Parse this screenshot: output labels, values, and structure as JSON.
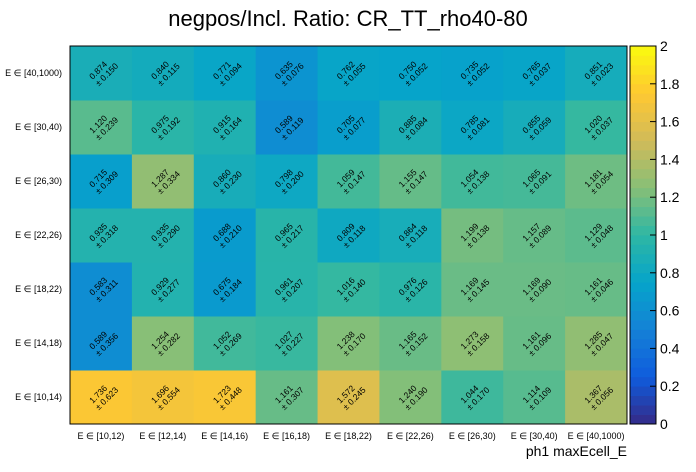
{
  "chart_data": {
    "type": "heatmap",
    "title": "negpos/Incl. Ratio: CR_TT_rho40-80",
    "xlabel": "ph1 maxEcell_E",
    "ylabel": "",
    "x_categories": [
      "E ∈ [10,12)",
      "E ∈ [12,14)",
      "E ∈ [14,16)",
      "E ∈ [16,18)",
      "E ∈ [18,22)",
      "E ∈ [22,26)",
      "E ∈ [26,30)",
      "E ∈ [30,40)",
      "E ∈ [40,1000)"
    ],
    "y_categories": [
      "E ∈ [10,14)",
      "E ∈ [14,18)",
      "E ∈ [18,22)",
      "E ∈ [22,26)",
      "E ∈ [26,30)",
      "E ∈ [30,40)",
      "E ∈ [40,1000)"
    ],
    "zlim": [
      0,
      2
    ],
    "z_ticks": [
      "0",
      "0.2",
      "0.4",
      "0.6",
      "0.8",
      "1",
      "1.2",
      "1.4",
      "1.6",
      "1.8",
      "2"
    ],
    "colormap": [
      "#352a87",
      "#0f5cdd",
      "#1481d6",
      "#06a4ca",
      "#2eb7a4",
      "#87bf77",
      "#d1bb59",
      "#fec832",
      "#f9fb0e"
    ],
    "cells": [
      {
        "value": "1.736",
        "error": "± 0.623"
      },
      {
        "value": "1.696",
        "error": "± 0.554"
      },
      {
        "value": "1.723",
        "error": "± 0.448"
      },
      {
        "value": "1.161",
        "error": "± 0.307"
      },
      {
        "value": "1.572",
        "error": "± 0.245"
      },
      {
        "value": "1.240",
        "error": "± 0.190"
      },
      {
        "value": "1.044",
        "error": "± 0.170"
      },
      {
        "value": "1.114",
        "error": "± 0.109"
      },
      {
        "value": "1.367",
        "error": "± 0.056"
      },
      {
        "value": "0.589",
        "error": "± 0.356"
      },
      {
        "value": "1.254",
        "error": "± 0.282"
      },
      {
        "value": "1.052",
        "error": "± 0.269"
      },
      {
        "value": "1.027",
        "error": "± 0.227"
      },
      {
        "value": "1.238",
        "error": "± 0.170"
      },
      {
        "value": "1.165",
        "error": "± 0.152"
      },
      {
        "value": "1.273",
        "error": "± 0.158"
      },
      {
        "value": "1.161",
        "error": "± 0.096"
      },
      {
        "value": "1.285",
        "error": "± 0.047"
      },
      {
        "value": "0.583",
        "error": "± 0.311"
      },
      {
        "value": "0.929",
        "error": "± 0.277"
      },
      {
        "value": "0.675",
        "error": "± 0.184"
      },
      {
        "value": "0.961",
        "error": "± 0.207"
      },
      {
        "value": "1.016",
        "error": "± 0.140"
      },
      {
        "value": "0.976",
        "error": "± 0.126"
      },
      {
        "value": "1.169",
        "error": "± 0.145"
      },
      {
        "value": "1.169",
        "error": "± 0.090"
      },
      {
        "value": "1.161",
        "error": "± 0.046"
      },
      {
        "value": "0.935",
        "error": "± 0.318"
      },
      {
        "value": "0.935",
        "error": "± 0.290"
      },
      {
        "value": "0.688",
        "error": "± 0.210"
      },
      {
        "value": "0.965",
        "error": "± 0.217"
      },
      {
        "value": "0.809",
        "error": "± 0.118"
      },
      {
        "value": "0.864",
        "error": "± 0.118"
      },
      {
        "value": "1.199",
        "error": "± 0.138"
      },
      {
        "value": "1.157",
        "error": "± 0.089"
      },
      {
        "value": "1.129",
        "error": "± 0.048"
      },
      {
        "value": "0.715",
        "error": "± 0.309"
      },
      {
        "value": "1.287",
        "error": "± 0.334"
      },
      {
        "value": "0.860",
        "error": "± 0.230"
      },
      {
        "value": "0.798",
        "error": "± 0.200"
      },
      {
        "value": "1.059",
        "error": "± 0.147"
      },
      {
        "value": "1.155",
        "error": "± 0.147"
      },
      {
        "value": "1.054",
        "error": "± 0.138"
      },
      {
        "value": "1.065",
        "error": "± 0.091"
      },
      {
        "value": "1.181",
        "error": "± 0.054"
      },
      {
        "value": "1.120",
        "error": "± 0.239"
      },
      {
        "value": "0.975",
        "error": "± 0.192"
      },
      {
        "value": "0.915",
        "error": "± 0.164"
      },
      {
        "value": "0.589",
        "error": "± 0.119"
      },
      {
        "value": "0.705",
        "error": "± 0.077"
      },
      {
        "value": "0.885",
        "error": "± 0.084"
      },
      {
        "value": "0.785",
        "error": "± 0.081"
      },
      {
        "value": "0.855",
        "error": "± 0.059"
      },
      {
        "value": "1.020",
        "error": "± 0.037"
      },
      {
        "value": "0.874",
        "error": "± 0.150"
      },
      {
        "value": "0.840",
        "error": "± 0.115"
      },
      {
        "value": "0.771",
        "error": "± 0.094"
      },
      {
        "value": "0.635",
        "error": "± 0.076"
      },
      {
        "value": "0.762",
        "error": "± 0.055"
      },
      {
        "value": "0.750",
        "error": "± 0.052"
      },
      {
        "value": "0.735",
        "error": "± 0.052"
      },
      {
        "value": "0.765",
        "error": "± 0.037"
      },
      {
        "value": "0.851",
        "error": "± 0.023"
      }
    ]
  }
}
